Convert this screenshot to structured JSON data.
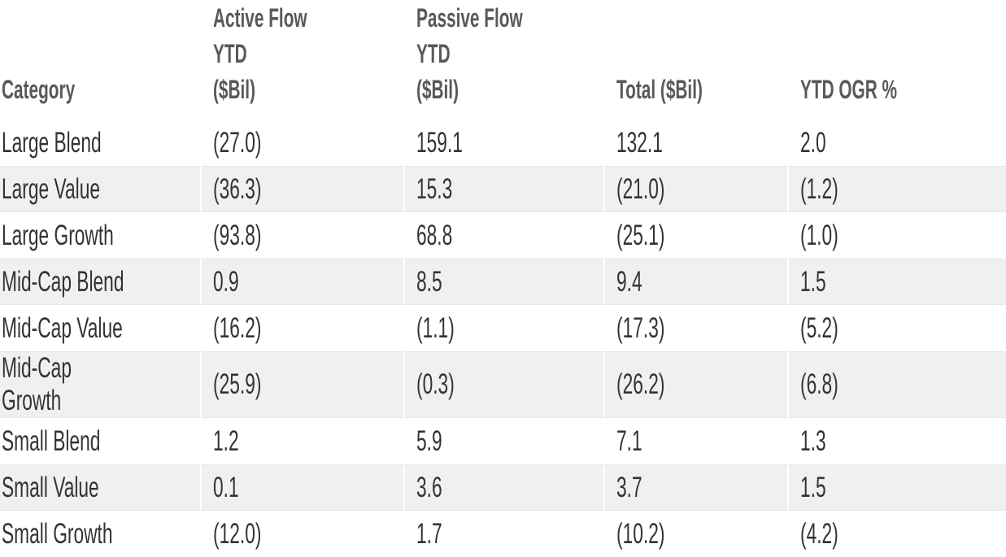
{
  "table": {
    "columns": [
      {
        "key": "category",
        "label": "Category"
      },
      {
        "key": "active",
        "label": "Active Flow YTD\n($Bil)"
      },
      {
        "key": "passive",
        "label": "Passive Flow YTD\n($Bil)"
      },
      {
        "key": "total",
        "label": "Total ($Bil)"
      },
      {
        "key": "ogr",
        "label": "YTD OGR %"
      }
    ],
    "rows": [
      {
        "cells": [
          "Large Blend",
          "(27.0)",
          "159.1",
          "132.1",
          "2.0"
        ]
      },
      {
        "cells": [
          "Large Value",
          "(36.3)",
          "15.3",
          "(21.0)",
          "(1.2)"
        ]
      },
      {
        "cells": [
          "Large Growth",
          "(93.8)",
          "68.8",
          "(25.1)",
          "(1.0)"
        ]
      },
      {
        "cells": [
          "Mid-Cap Blend",
          "0.9",
          "8.5",
          "9.4",
          "1.5"
        ]
      },
      {
        "cells": [
          "Mid-Cap Value",
          "(16.2)",
          "(1.1)",
          "(17.3)",
          "(5.2)"
        ]
      },
      {
        "cells": [
          "Mid-Cap Growth",
          "(25.9)",
          "(0.3)",
          "(26.2)",
          "(6.8)"
        ]
      },
      {
        "cells": [
          "Small Blend",
          "1.2",
          "5.9",
          "7.1",
          "1.3"
        ]
      },
      {
        "cells": [
          "Small Value",
          "0.1",
          "3.6",
          "3.7",
          "1.5"
        ]
      },
      {
        "cells": [
          "Small Growth",
          "(12.0)",
          "1.7",
          "(10.2)",
          "(4.2)"
        ]
      }
    ],
    "colors": {
      "background": "#ffffff",
      "stripe": "#f0f0f0",
      "stripe_border": "#e6e6e6",
      "header_text": "#58595b",
      "body_text": "#333333"
    }
  },
  "chart_data": {
    "type": "table",
    "title": "",
    "columns": [
      "Category",
      "Active Flow YTD ($Bil)",
      "Passive Flow YTD ($Bil)",
      "Total ($Bil)",
      "YTD OGR %"
    ],
    "rows": [
      [
        "Large Blend",
        -27.0,
        159.1,
        132.1,
        2.0
      ],
      [
        "Large Value",
        -36.3,
        15.3,
        -21.0,
        -1.2
      ],
      [
        "Large Growth",
        -93.8,
        68.8,
        -25.1,
        -1.0
      ],
      [
        "Mid-Cap Blend",
        0.9,
        8.5,
        9.4,
        1.5
      ],
      [
        "Mid-Cap Value",
        -16.2,
        -1.1,
        -17.3,
        -5.2
      ],
      [
        "Mid-Cap Growth",
        -25.9,
        -0.3,
        -26.2,
        -6.8
      ],
      [
        "Small Blend",
        1.2,
        5.9,
        7.1,
        1.3
      ],
      [
        "Small Value",
        0.1,
        3.6,
        3.7,
        1.5
      ],
      [
        "Small Growth",
        -12.0,
        1.7,
        -10.2,
        -4.2
      ]
    ],
    "notes": "Parentheses in the rendered table denote negative values; stripes on rows 2,4,6,8"
  }
}
